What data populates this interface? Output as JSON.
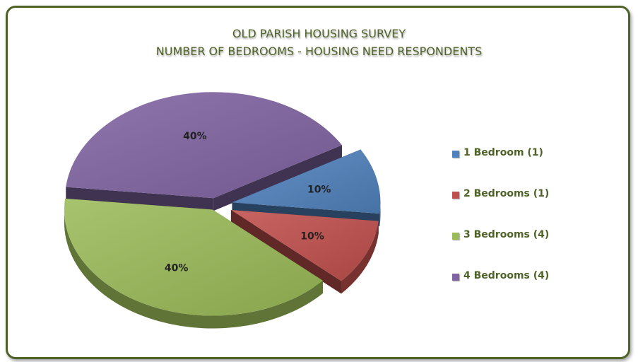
{
  "chart_data": {
    "type": "pie",
    "title": "OLD PARISH HOUSING SURVEY",
    "subtitle": "NUMBER OF BEDROOMS - HOUSING NEED RESPONDENTS",
    "categories": [
      "1 Bedroom (1)",
      "2 Bedrooms (1)",
      "3 Bedrooms (4)",
      "4 Bedrooms (4)"
    ],
    "values": [
      1,
      1,
      4,
      4
    ],
    "percent_labels": [
      "10%",
      "10%",
      "40%",
      "40%"
    ],
    "colors": [
      "#4f81bd",
      "#c0504d",
      "#9bbb59",
      "#8064a2"
    ],
    "legend_position": "right",
    "exploded": true,
    "style": "3d"
  }
}
